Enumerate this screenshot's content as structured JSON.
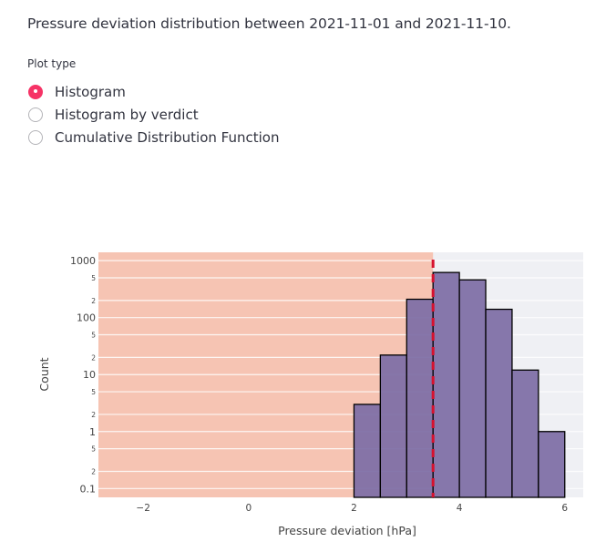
{
  "description": "Pressure deviation distribution between 2021-11-01 and 2021-11-10.",
  "plot_type": {
    "label": "Plot type",
    "options": [
      {
        "label": "Histogram",
        "selected": true
      },
      {
        "label": "Histogram by verdict",
        "selected": false
      },
      {
        "label": "Cumulative Distribution Function",
        "selected": false
      }
    ]
  },
  "colors": {
    "accent": "#f63366",
    "bar_fill": "#8070a6",
    "bar_stroke": "#000000",
    "shaded_region": "#f6c4b3",
    "plot_bg": "#eff0f4",
    "threshold_line": "#d6112e"
  },
  "chart_data": {
    "type": "bar",
    "subtype": "histogram",
    "xlabel": "Pressure deviation [hPa]",
    "ylabel": "Count",
    "yscale": "log",
    "xlim": [
      -2.85,
      6.35
    ],
    "ylim": [
      0.07,
      1400
    ],
    "grid": true,
    "legend": "none",
    "x_ticks": [
      -2,
      0,
      2,
      4,
      6
    ],
    "x_tick_labels": [
      "−2",
      "0",
      "2",
      "4",
      "6"
    ],
    "y_major_ticks": [
      0.1,
      1,
      10,
      100,
      1000
    ],
    "y_major_tick_labels": [
      "0.1",
      "1",
      "10",
      "100",
      "1000"
    ],
    "y_minor_ticks": [
      0.2,
      0.5,
      2,
      5,
      20,
      50,
      200,
      500
    ],
    "y_minor_tick_labels": [
      "2",
      "5",
      "2",
      "5",
      "2",
      "5",
      "2",
      "5"
    ],
    "bins": [
      {
        "x0": 2.0,
        "x1": 2.5,
        "count": 3
      },
      {
        "x0": 2.5,
        "x1": 3.0,
        "count": 22
      },
      {
        "x0": 3.0,
        "x1": 3.5,
        "count": 210
      },
      {
        "x0": 3.5,
        "x1": 4.0,
        "count": 620
      },
      {
        "x0": 4.0,
        "x1": 4.5,
        "count": 460
      },
      {
        "x0": 4.5,
        "x1": 5.0,
        "count": 140
      },
      {
        "x0": 5.0,
        "x1": 5.5,
        "count": 12
      },
      {
        "x0": 5.5,
        "x1": 6.0,
        "count": 1
      }
    ],
    "shaded_region": {
      "x0": -2.85,
      "x1": 3.5
    },
    "threshold": 3.5
  }
}
